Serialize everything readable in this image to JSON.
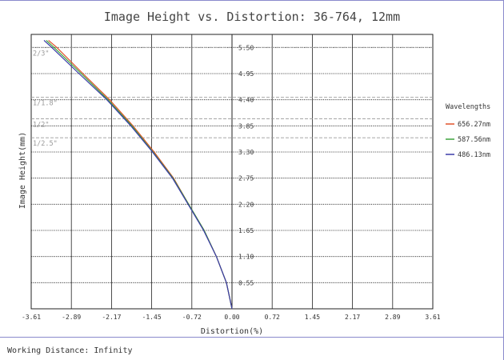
{
  "chart_data": {
    "type": "line",
    "title": "Image Height vs. Distortion: 36-764, 12mm",
    "xlabel": "Distortion(%)",
    "ylabel": "Image Height(mm)",
    "xlim": [
      -3.61,
      3.61
    ],
    "ylim": [
      0,
      5.775
    ],
    "x_ticks": [
      "-3.61",
      "-2.89",
      "-2.17",
      "-1.45",
      "-0.72",
      "0.00",
      "0.72",
      "1.45",
      "2.17",
      "2.89",
      "3.61"
    ],
    "y_ticks": [
      "5.50",
      "4.95",
      "4.40",
      "3.85",
      "3.30",
      "2.75",
      "2.20",
      "1.65",
      "1.10",
      "0.55"
    ],
    "y_tick_values": [
      5.5,
      4.95,
      4.4,
      3.85,
      3.3,
      2.75,
      2.2,
      1.65,
      1.1,
      0.55
    ],
    "grid": true,
    "sensor_lines": [
      {
        "label": "2/3\"",
        "y": 5.5
      },
      {
        "label": "1/1.8\"",
        "y": 4.45
      },
      {
        "label": "1/2\"",
        "y": 4.0
      },
      {
        "label": "1/2.5\"",
        "y": 3.6
      }
    ],
    "legend": {
      "title": "Wavelengths",
      "position": "right"
    },
    "series": [
      {
        "name": "656.27nm",
        "color": "#e0522a",
        "points": [
          [
            0,
            0
          ],
          [
            -0.1,
            0.55
          ],
          [
            -0.28,
            1.1
          ],
          [
            -0.5,
            1.65
          ],
          [
            -0.78,
            2.2
          ],
          [
            -1.05,
            2.75
          ],
          [
            -1.4,
            3.3
          ],
          [
            -1.78,
            3.85
          ],
          [
            -2.2,
            4.4
          ],
          [
            -2.68,
            4.95
          ],
          [
            -3.15,
            5.5
          ],
          [
            -3.3,
            5.65
          ]
        ]
      },
      {
        "name": "587.56nm",
        "color": "#3da33d",
        "points": [
          [
            0,
            0
          ],
          [
            -0.1,
            0.55
          ],
          [
            -0.28,
            1.1
          ],
          [
            -0.5,
            1.65
          ],
          [
            -0.78,
            2.2
          ],
          [
            -1.06,
            2.75
          ],
          [
            -1.42,
            3.3
          ],
          [
            -1.8,
            3.85
          ],
          [
            -2.23,
            4.4
          ],
          [
            -2.71,
            4.95
          ],
          [
            -3.2,
            5.5
          ],
          [
            -3.34,
            5.65
          ]
        ]
      },
      {
        "name": "486.13nm",
        "color": "#3a3aa8",
        "points": [
          [
            0,
            0
          ],
          [
            -0.1,
            0.55
          ],
          [
            -0.28,
            1.1
          ],
          [
            -0.51,
            1.65
          ],
          [
            -0.79,
            2.2
          ],
          [
            -1.07,
            2.75
          ],
          [
            -1.43,
            3.3
          ],
          [
            -1.82,
            3.85
          ],
          [
            -2.25,
            4.4
          ],
          [
            -2.75,
            4.95
          ],
          [
            -3.24,
            5.5
          ],
          [
            -3.38,
            5.65
          ]
        ]
      }
    ]
  },
  "footer": {
    "working_distance": "Working Distance: Infinity"
  }
}
